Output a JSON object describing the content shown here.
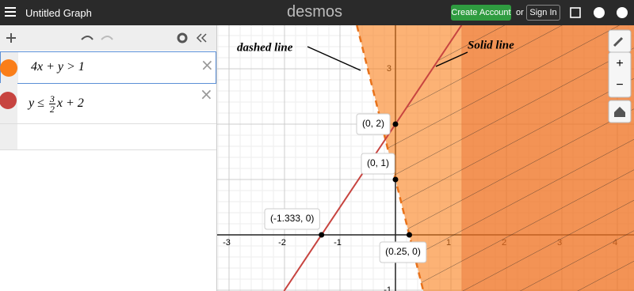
{
  "header": {
    "title": "Untitled Graph",
    "logo": "desmos",
    "create_account": "Create Account",
    "or": "or",
    "sign_in": "Sign In"
  },
  "expressions": [
    {
      "text": "4x + y > 1"
    },
    {
      "before": "y ≤ ",
      "numerator": "3",
      "denominator": "2",
      "after": "x + 2"
    }
  ],
  "graph": {
    "xticks": [
      -3,
      -2,
      -1,
      1,
      2,
      3,
      4
    ],
    "yticks": [
      3,
      -1
    ],
    "points": [
      {
        "label": "(0, 2)",
        "x": 0,
        "y": 2
      },
      {
        "label": "(0, 1)",
        "x": 0,
        "y": 1
      },
      {
        "label": "(-1.333, 0)",
        "x": -1.333,
        "y": 0
      },
      {
        "label": "(0.25, 0)",
        "x": 0.25,
        "y": 0
      }
    ],
    "annotations": [
      "dashed line",
      "Solid line"
    ]
  }
}
